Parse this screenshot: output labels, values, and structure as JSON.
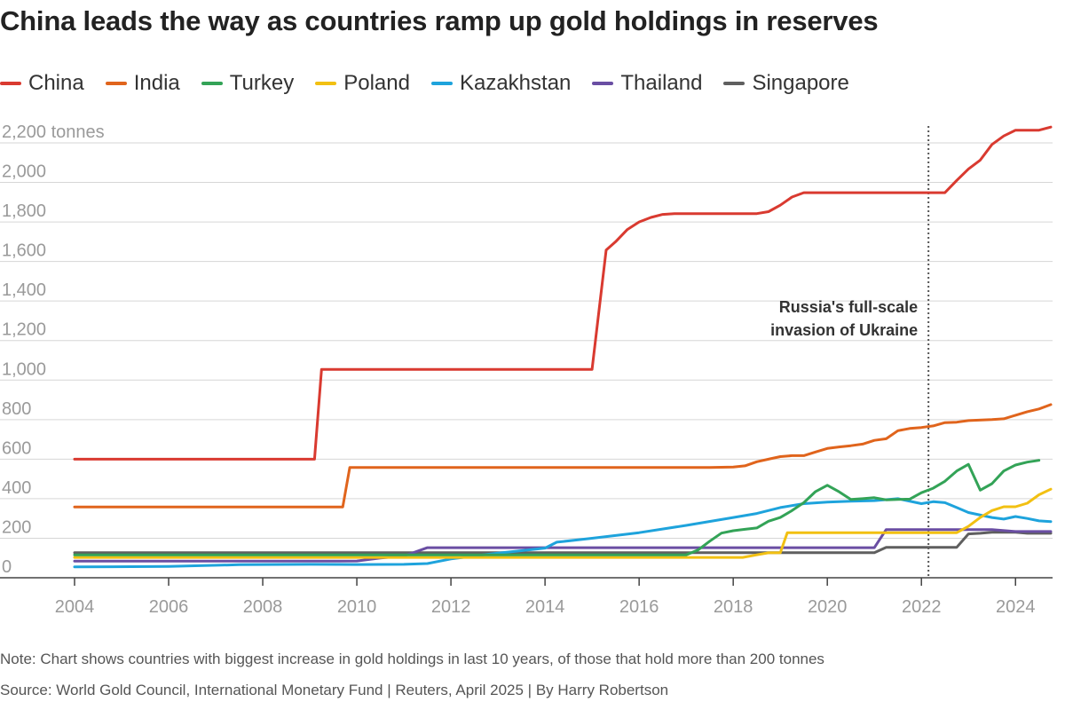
{
  "header": {
    "title": "China leads the way as countries ramp up gold holdings in reserves"
  },
  "footer": {
    "note": "Note: Chart shows countries with biggest increase in gold holdings in last 10 years, of those that hold more than 200 tonnes",
    "source": "Source: World Gold Council, International Monetary Fund | Reuters, April 2025 | By Harry Robertson"
  },
  "chart_data": {
    "type": "line",
    "title": "China leads the way as countries ramp up gold holdings in reserves",
    "xlabel": "",
    "ylabel": "tonnes",
    "xlim": [
      2004,
      2024.75
    ],
    "ylim": [
      0,
      2200
    ],
    "grid": true,
    "legend_position": "top",
    "x_ticks": [
      2004,
      2006,
      2008,
      2010,
      2012,
      2014,
      2016,
      2018,
      2020,
      2022,
      2024
    ],
    "x_tick_labels": [
      "2004",
      "2006",
      "2008",
      "2010",
      "2012",
      "2014",
      "2016",
      "2018",
      "2020",
      "2022",
      "2024"
    ],
    "y_ticks": [
      0,
      200,
      400,
      600,
      800,
      1000,
      1200,
      1400,
      1600,
      1800,
      2000,
      2200
    ],
    "y_tick_labels": [
      "0",
      "200",
      "400",
      "600",
      "800",
      "1,000",
      "1,200",
      "1,400",
      "1,600",
      "1,800",
      "2,000",
      "2,200 tonnes"
    ],
    "annotation": {
      "x": 2022.15,
      "lines": [
        "Russia's full-scale",
        "invasion of Ukraine"
      ]
    },
    "series": [
      {
        "name": "China",
        "color": "#d93a30",
        "points": [
          [
            2004,
            600
          ],
          [
            2009.1,
            600
          ],
          [
            2009.25,
            1054
          ],
          [
            2015.0,
            1054
          ],
          [
            2015.3,
            1658
          ],
          [
            2015.5,
            1700
          ],
          [
            2015.75,
            1762
          ],
          [
            2016.0,
            1800
          ],
          [
            2016.25,
            1823
          ],
          [
            2016.5,
            1838
          ],
          [
            2016.75,
            1842
          ],
          [
            2017.0,
            1842
          ],
          [
            2018.0,
            1842
          ],
          [
            2018.5,
            1842
          ],
          [
            2018.75,
            1852
          ],
          [
            2019.0,
            1885
          ],
          [
            2019.25,
            1926
          ],
          [
            2019.5,
            1948
          ],
          [
            2020.0,
            1948
          ],
          [
            2021.0,
            1948
          ],
          [
            2022.0,
            1948
          ],
          [
            2022.5,
            1948
          ],
          [
            2022.75,
            2010
          ],
          [
            2023.0,
            2068
          ],
          [
            2023.25,
            2113
          ],
          [
            2023.5,
            2192
          ],
          [
            2023.75,
            2235
          ],
          [
            2024.0,
            2264
          ],
          [
            2024.25,
            2264
          ],
          [
            2024.5,
            2264
          ],
          [
            2024.75,
            2280
          ]
        ]
      },
      {
        "name": "India",
        "color": "#e0641c",
        "points": [
          [
            2004,
            358
          ],
          [
            2009.7,
            358
          ],
          [
            2009.85,
            558
          ],
          [
            2016.0,
            558
          ],
          [
            2017.5,
            558
          ],
          [
            2018.0,
            560
          ],
          [
            2018.25,
            566
          ],
          [
            2018.5,
            587
          ],
          [
            2018.75,
            600
          ],
          [
            2019.0,
            613
          ],
          [
            2019.25,
            618
          ],
          [
            2019.5,
            618
          ],
          [
            2019.75,
            636
          ],
          [
            2020.0,
            654
          ],
          [
            2020.25,
            662
          ],
          [
            2020.5,
            668
          ],
          [
            2020.75,
            676
          ],
          [
            2021.0,
            695
          ],
          [
            2021.25,
            703
          ],
          [
            2021.5,
            744
          ],
          [
            2021.75,
            755
          ],
          [
            2022.0,
            760
          ],
          [
            2022.25,
            768
          ],
          [
            2022.5,
            785
          ],
          [
            2022.75,
            787
          ],
          [
            2023.0,
            795
          ],
          [
            2023.5,
            800
          ],
          [
            2023.75,
            804
          ],
          [
            2024.0,
            822
          ],
          [
            2024.25,
            840
          ],
          [
            2024.5,
            854
          ],
          [
            2024.75,
            876
          ]
        ]
      },
      {
        "name": "Turkey",
        "color": "#33a357",
        "points": [
          [
            2004,
            116
          ],
          [
            2017.0,
            116
          ],
          [
            2017.25,
            140
          ],
          [
            2017.5,
            185
          ],
          [
            2017.75,
            226
          ],
          [
            2018.0,
            238
          ],
          [
            2018.25,
            245
          ],
          [
            2018.5,
            252
          ],
          [
            2018.75,
            286
          ],
          [
            2019.0,
            305
          ],
          [
            2019.25,
            340
          ],
          [
            2019.5,
            380
          ],
          [
            2019.75,
            436
          ],
          [
            2020.0,
            468
          ],
          [
            2020.25,
            435
          ],
          [
            2020.5,
            396
          ],
          [
            2020.75,
            400
          ],
          [
            2021.0,
            405
          ],
          [
            2021.25,
            394
          ],
          [
            2021.5,
            396
          ],
          [
            2021.75,
            398
          ],
          [
            2022.0,
            430
          ],
          [
            2022.25,
            453
          ],
          [
            2022.5,
            488
          ],
          [
            2022.75,
            540
          ],
          [
            2023.0,
            574
          ],
          [
            2023.25,
            443
          ],
          [
            2023.5,
            476
          ],
          [
            2023.75,
            540
          ],
          [
            2024.0,
            570
          ],
          [
            2024.25,
            585
          ],
          [
            2024.5,
            594
          ]
        ]
      },
      {
        "name": "Poland",
        "color": "#f2c012",
        "points": [
          [
            2004,
            103
          ],
          [
            2018.2,
            103
          ],
          [
            2018.5,
            116
          ],
          [
            2018.75,
            126
          ],
          [
            2019.0,
            126
          ],
          [
            2019.15,
            228
          ],
          [
            2020.0,
            228
          ],
          [
            2021.0,
            228
          ],
          [
            2022.0,
            228
          ],
          [
            2022.75,
            228
          ],
          [
            2023.0,
            260
          ],
          [
            2023.25,
            305
          ],
          [
            2023.5,
            340
          ],
          [
            2023.75,
            359
          ],
          [
            2024.0,
            359
          ],
          [
            2024.25,
            377
          ],
          [
            2024.5,
            420
          ],
          [
            2024.75,
            448
          ]
        ]
      },
      {
        "name": "Kazakhstan",
        "color": "#1ea3dc",
        "points": [
          [
            2004,
            55
          ],
          [
            2006,
            57
          ],
          [
            2007.5,
            66
          ],
          [
            2009.0,
            68
          ],
          [
            2010.0,
            67
          ],
          [
            2011.0,
            68
          ],
          [
            2011.5,
            72
          ],
          [
            2012.0,
            95
          ],
          [
            2012.5,
            110
          ],
          [
            2013.0,
            125
          ],
          [
            2013.5,
            137
          ],
          [
            2014.0,
            150
          ],
          [
            2014.25,
            180
          ],
          [
            2015.0,
            200
          ],
          [
            2016.0,
            228
          ],
          [
            2017.0,
            265
          ],
          [
            2018.0,
            305
          ],
          [
            2018.5,
            325
          ],
          [
            2019.0,
            355
          ],
          [
            2019.5,
            375
          ],
          [
            2020.0,
            383
          ],
          [
            2020.5,
            387
          ],
          [
            2021.0,
            390
          ],
          [
            2021.5,
            400
          ],
          [
            2022.0,
            375
          ],
          [
            2022.25,
            385
          ],
          [
            2022.5,
            380
          ],
          [
            2022.75,
            355
          ],
          [
            2023.0,
            330
          ],
          [
            2023.5,
            305
          ],
          [
            2023.75,
            297
          ],
          [
            2024.0,
            310
          ],
          [
            2024.25,
            300
          ],
          [
            2024.5,
            288
          ],
          [
            2024.75,
            284
          ]
        ]
      },
      {
        "name": "Thailand",
        "color": "#6a4ea3",
        "points": [
          [
            2004,
            84
          ],
          [
            2009.0,
            84
          ],
          [
            2009.5,
            84
          ],
          [
            2010.0,
            85
          ],
          [
            2010.5,
            100
          ],
          [
            2011.0,
            110
          ],
          [
            2011.5,
            152
          ],
          [
            2012.0,
            152
          ],
          [
            2014.0,
            152
          ],
          [
            2016.0,
            152
          ],
          [
            2018.0,
            152
          ],
          [
            2020.0,
            152
          ],
          [
            2021.0,
            152
          ],
          [
            2021.25,
            244
          ],
          [
            2022.0,
            244
          ],
          [
            2023.0,
            244
          ],
          [
            2023.5,
            244
          ],
          [
            2024.0,
            234
          ],
          [
            2024.75,
            234
          ]
        ]
      },
      {
        "name": "Singapore",
        "color": "#5f5f5f",
        "points": [
          [
            2004,
            127
          ],
          [
            2010.0,
            127
          ],
          [
            2014.0,
            127
          ],
          [
            2016.0,
            127
          ],
          [
            2018.0,
            127
          ],
          [
            2020.0,
            127
          ],
          [
            2021.0,
            127
          ],
          [
            2021.25,
            154
          ],
          [
            2022.0,
            154
          ],
          [
            2022.75,
            154
          ],
          [
            2023.0,
            222
          ],
          [
            2023.25,
            225
          ],
          [
            2023.5,
            230
          ],
          [
            2024.0,
            230
          ],
          [
            2024.25,
            225
          ],
          [
            2024.75,
            225
          ]
        ]
      }
    ]
  }
}
